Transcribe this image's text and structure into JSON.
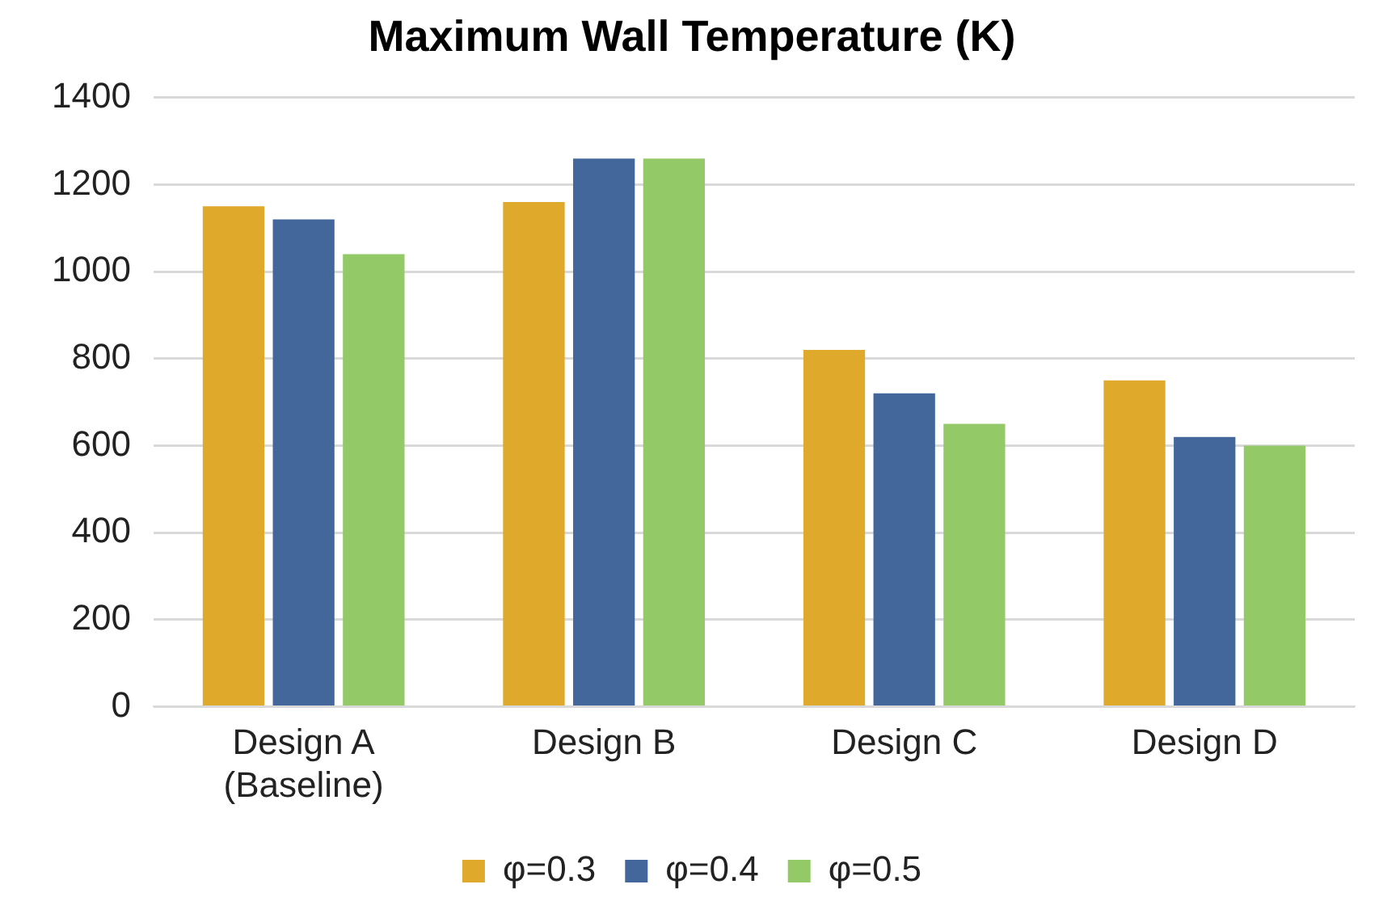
{
  "chart_data": {
    "type": "bar",
    "title": "Maximum Wall Temperature (K)",
    "categories": [
      "Design A\n(Baseline)",
      "Design B",
      "Design C",
      "Design D"
    ],
    "series": [
      {
        "name": "φ=0.3",
        "color": "#dfa92c",
        "values": [
          1150,
          1160,
          820,
          750
        ]
      },
      {
        "name": "φ=0.4",
        "color": "#43679b",
        "values": [
          1120,
          1260,
          720,
          620
        ]
      },
      {
        "name": "φ=0.5",
        "color": "#93c966",
        "values": [
          1040,
          1260,
          650,
          600
        ]
      }
    ],
    "ylim": [
      0,
      1400
    ],
    "yticks": [
      0,
      200,
      400,
      600,
      800,
      1000,
      1200,
      1400
    ],
    "grid": "y",
    "legend": "bottom"
  }
}
